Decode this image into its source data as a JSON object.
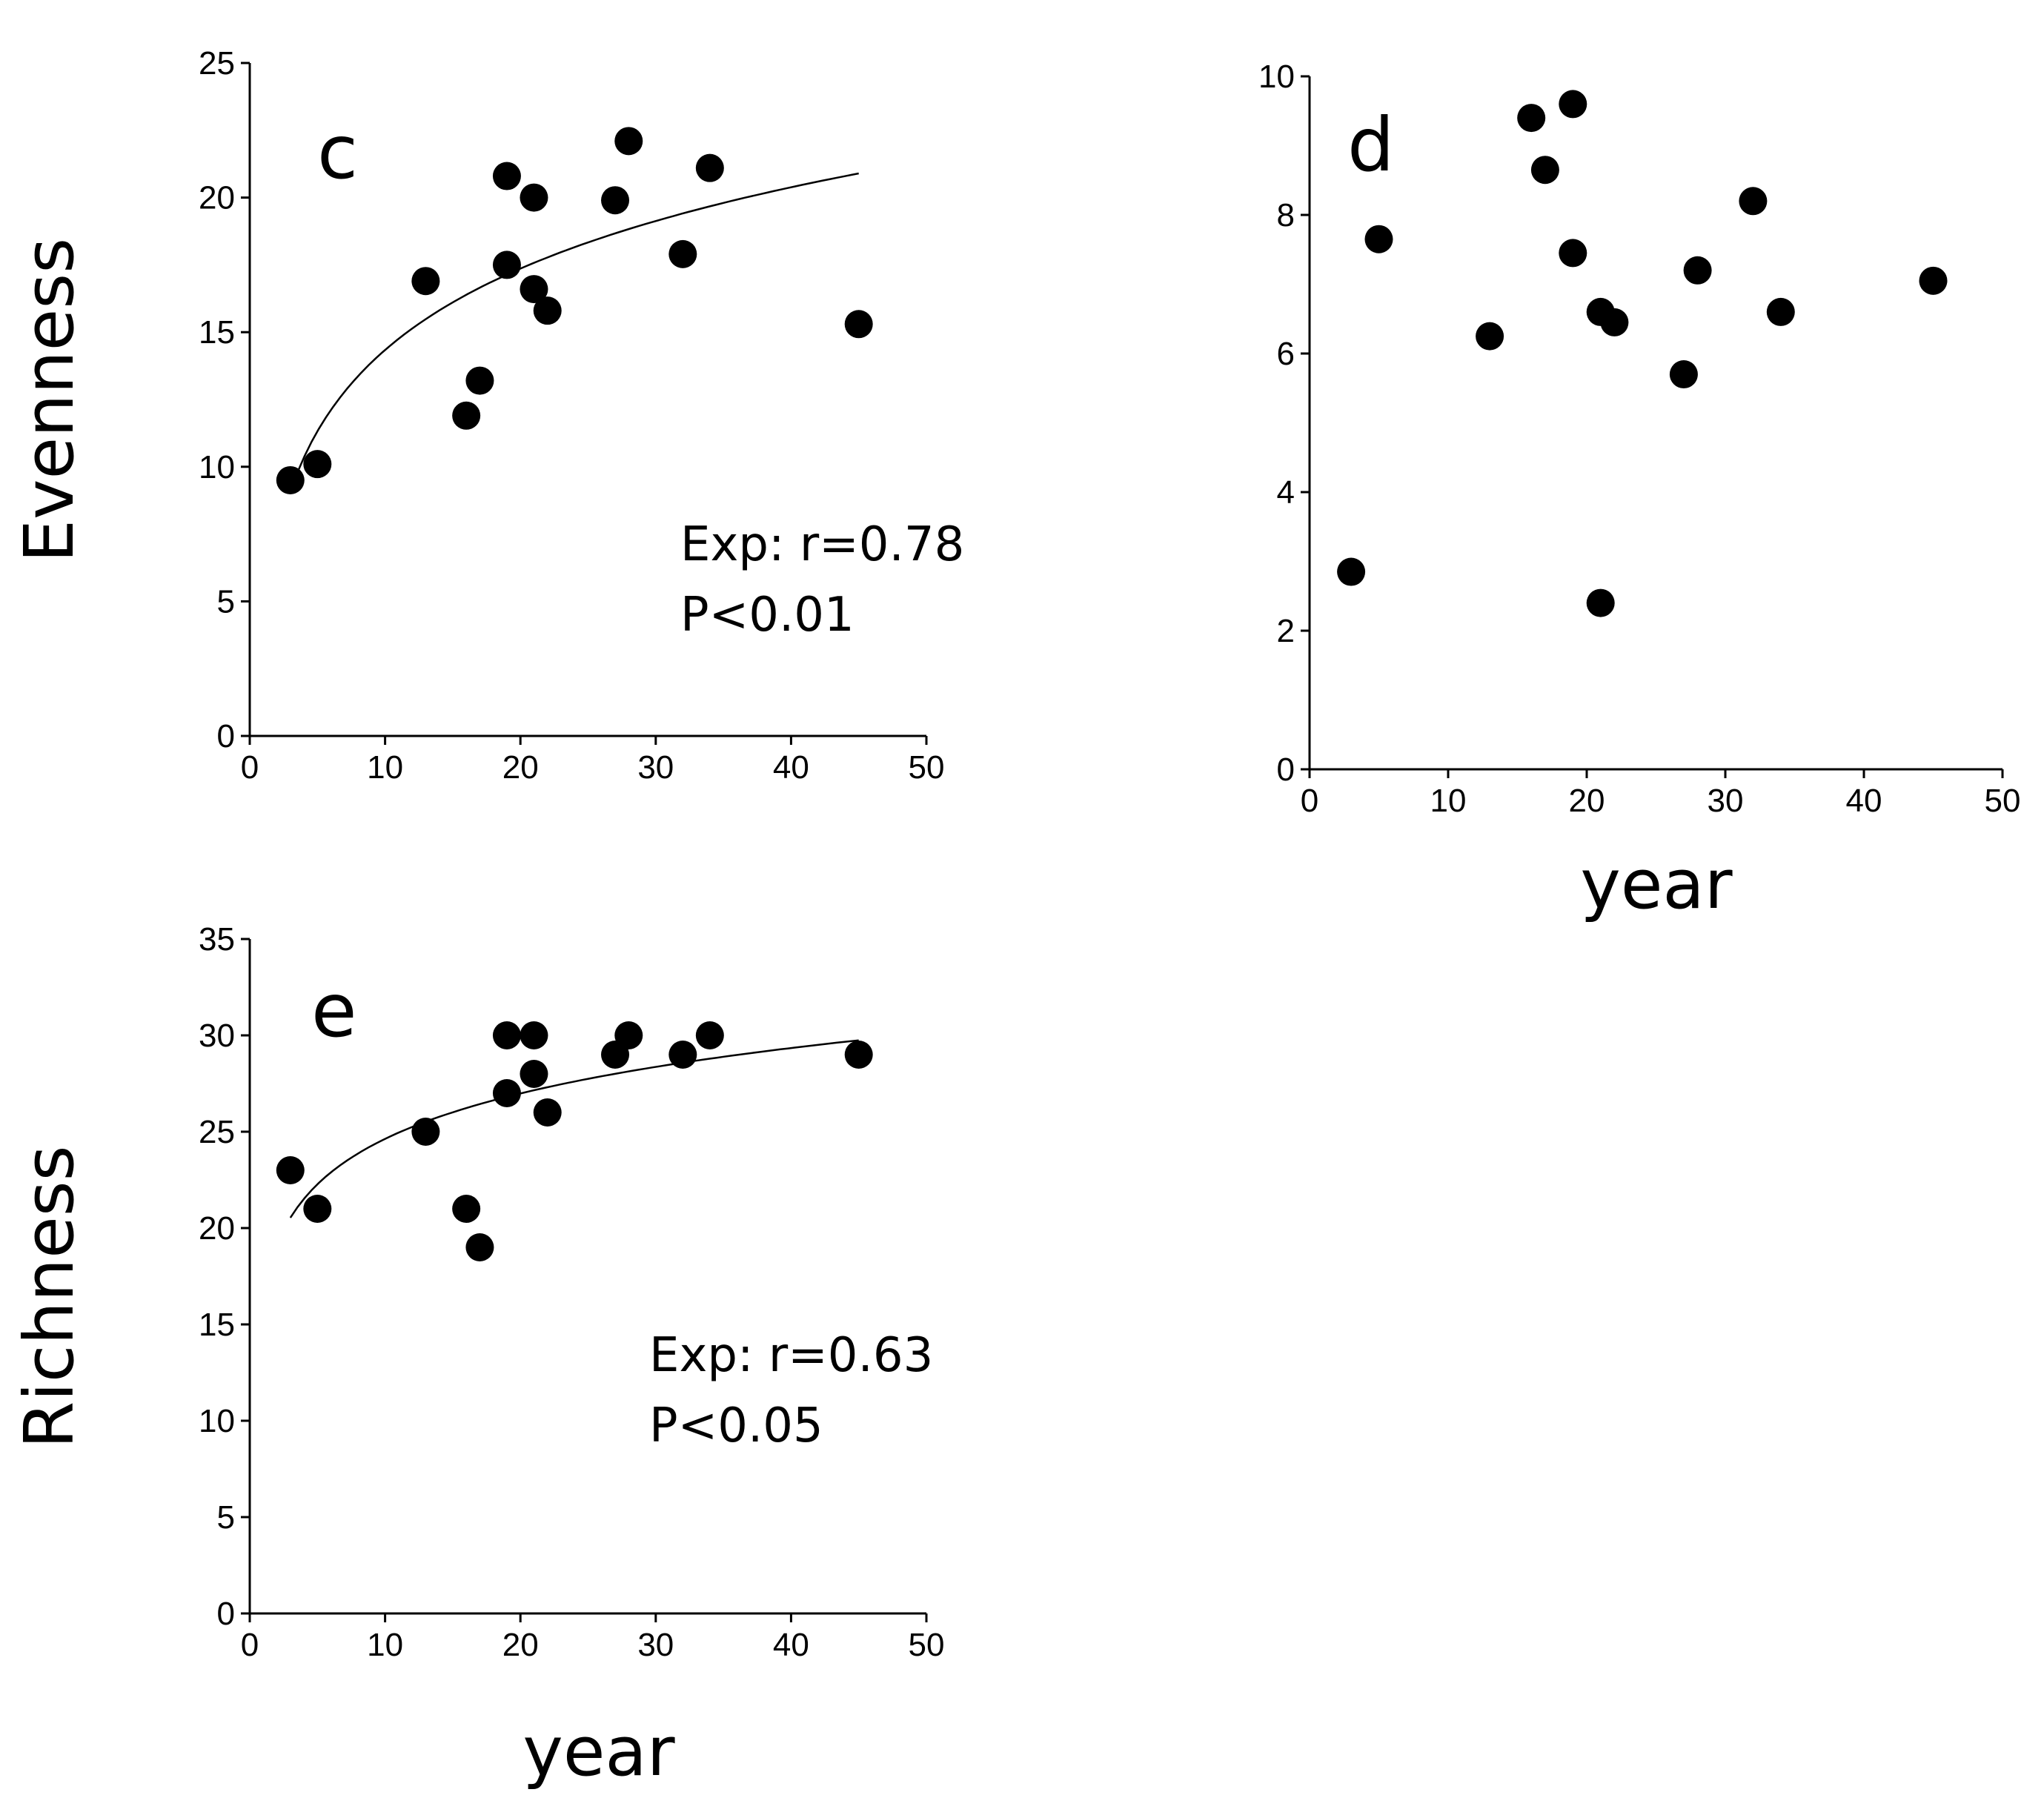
{
  "chart_data": [
    {
      "id": "c",
      "type": "scatter",
      "panel_label": "c",
      "ylabel": "Evenness",
      "xlabel": "",
      "xlim": [
        0,
        50
      ],
      "ylim": [
        0,
        25
      ],
      "xticks": [
        0,
        10,
        20,
        30,
        40,
        50
      ],
      "yticks": [
        0,
        5,
        10,
        15,
        20,
        25
      ],
      "x": [
        3,
        5,
        13,
        16,
        17,
        19,
        19,
        21,
        21,
        22,
        27,
        28,
        32,
        34,
        45
      ],
      "y": [
        9.5,
        10.1,
        16.9,
        11.9,
        13.2,
        20.8,
        17.5,
        20.0,
        16.6,
        15.8,
        19.9,
        22.1,
        17.9,
        21.1,
        15.3
      ],
      "fit": {
        "type": "logarithmic",
        "x_range": [
          3,
          45
        ],
        "a": 4.3,
        "b": 4.36
      },
      "stats": [
        "Exp: r=0.78",
        "P<0.01"
      ]
    },
    {
      "id": "d",
      "type": "scatter",
      "panel_label": "d",
      "ylabel": "",
      "xlabel": "year",
      "xlim": [
        0,
        50
      ],
      "ylim": [
        0,
        10
      ],
      "xticks": [
        0,
        10,
        20,
        30,
        40,
        50
      ],
      "yticks": [
        0,
        2,
        4,
        6,
        8,
        10
      ],
      "x": [
        3,
        5,
        13,
        16,
        17,
        19,
        19,
        21,
        21,
        22,
        27,
        28,
        32,
        34,
        45
      ],
      "y": [
        2.85,
        7.65,
        6.25,
        9.4,
        8.65,
        9.6,
        7.45,
        2.4,
        6.6,
        6.45,
        5.7,
        7.2,
        8.2,
        6.6,
        7.05
      ],
      "fit": null,
      "stats": []
    },
    {
      "id": "e",
      "type": "scatter",
      "panel_label": "e",
      "ylabel": "Richness",
      "xlabel": "year",
      "xlim": [
        0,
        50
      ],
      "ylim": [
        0,
        35
      ],
      "xticks": [
        0,
        10,
        20,
        30,
        40,
        50
      ],
      "yticks": [
        0,
        5,
        10,
        15,
        20,
        25,
        30,
        35
      ],
      "x": [
        3,
        5,
        13,
        16,
        17,
        19,
        19,
        21,
        21,
        22,
        27,
        28,
        32,
        34,
        45
      ],
      "y": [
        23,
        21,
        25,
        21,
        19,
        30,
        27,
        30,
        28,
        26,
        29,
        30,
        29,
        30,
        29
      ],
      "fit": {
        "type": "logarithmic",
        "x_range": [
          3,
          45
        ],
        "a": 16.8,
        "b": 3.4
      },
      "stats": [
        "Exp: r=0.63",
        "P<0.05"
      ]
    }
  ]
}
